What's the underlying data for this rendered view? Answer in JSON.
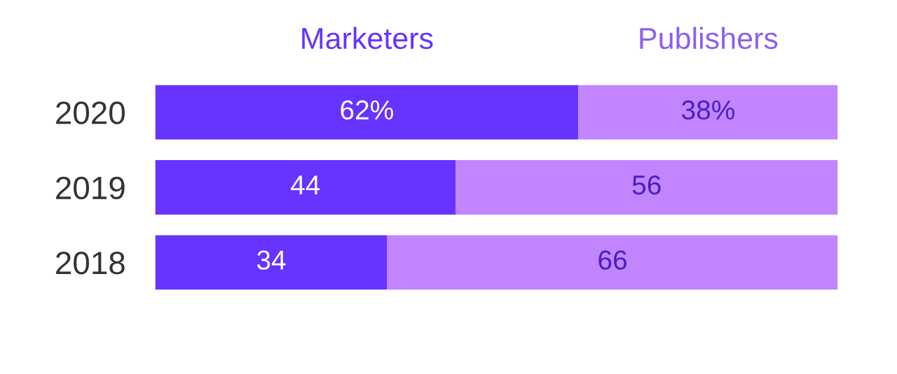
{
  "chart_data": {
    "type": "bar",
    "orientation": "horizontal",
    "stacked": true,
    "categories": [
      "2020",
      "2019",
      "2018"
    ],
    "series": [
      {
        "name": "Marketers",
        "color": "#6633ff",
        "values": [
          62,
          44,
          34
        ],
        "value_labels": [
          "62%",
          "44",
          "34"
        ]
      },
      {
        "name": "Publishers",
        "color": "#c285fd",
        "values": [
          38,
          56,
          66
        ],
        "value_labels": [
          "38%",
          "56",
          "66"
        ]
      }
    ],
    "legend": "top",
    "tick_labels": "y",
    "grid": false
  }
}
